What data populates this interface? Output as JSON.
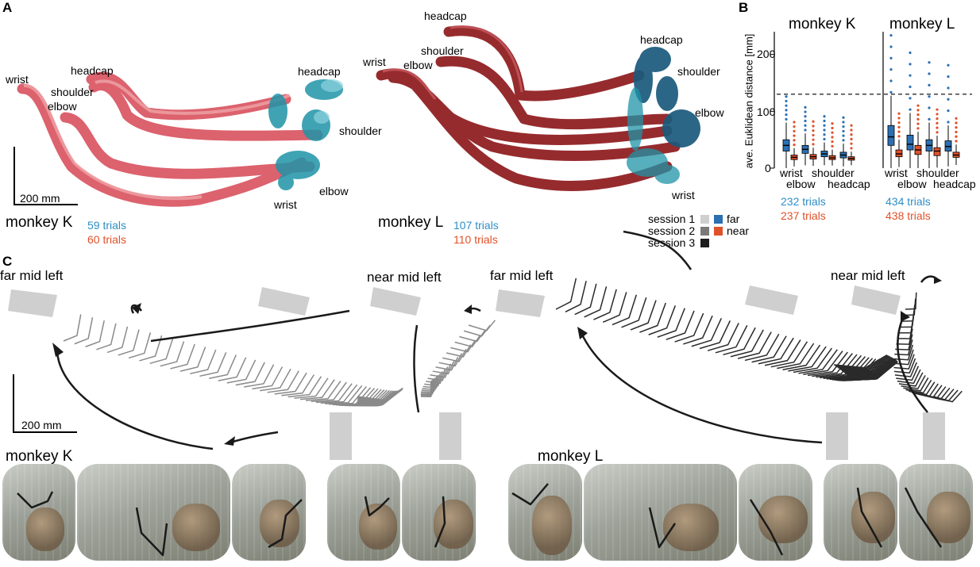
{
  "panels": {
    "a": "A",
    "b": "B",
    "c": "C"
  },
  "panel_a": {
    "scale_bar": "200 mm",
    "monkey_k": {
      "name": "monkey K",
      "far_trials": "59 trials",
      "near_trials": "60 trials",
      "labels": {
        "wrist_top": "wrist",
        "shoulder_top": "shoulder",
        "elbow_top": "elbow",
        "headcap_top": "headcap",
        "headcap_right": "headcap",
        "shoulder_right": "shoulder",
        "elbow_right": "elbow",
        "wrist_right": "wrist"
      }
    },
    "monkey_l": {
      "name": "monkey L",
      "far_trials": "107 trials",
      "near_trials": "110 trials",
      "labels": {
        "headcap_top": "headcap",
        "shoulder_top": "shoulder",
        "wrist_top": "wrist",
        "elbow_top": "elbow",
        "headcap_right": "headcap",
        "shoulder_right": "shoulder",
        "elbow_right": "elbow",
        "wrist_right": "wrist"
      }
    },
    "legend": {
      "session1": "session 1",
      "session2": "session 2",
      "session3": "session 3",
      "far": "far",
      "near": "near"
    }
  },
  "panel_b": {
    "ylabel": "ave. Euklidean distance [mm]",
    "monkey_k": {
      "title": "monkey K",
      "far_trials": "232 trials",
      "near_trials": "237 trials"
    },
    "monkey_l": {
      "title": "monkey L",
      "far_trials": "434 trials",
      "near_trials": "438 trials"
    },
    "ticks": [
      "0",
      "100",
      "200"
    ],
    "cat_row1": [
      "wrist",
      "shoulder"
    ],
    "cat_row2": [
      "elbow",
      "headcap"
    ]
  },
  "panel_c": {
    "scale_bar": "200 mm",
    "labels": {
      "k_far": "far mid left",
      "k_near": "near mid left",
      "l_far": "far mid left",
      "l_near": "near mid left"
    },
    "monkey_k": "monkey K",
    "monkey_l": "monkey L"
  },
  "chart_data": {
    "type": "box",
    "title": "",
    "ylabel": "ave. Euklidean distance [mm]",
    "ylim": [
      0,
      240
    ],
    "threshold_line": 130,
    "categories": [
      "wrist",
      "elbow",
      "shoulder",
      "headcap"
    ],
    "groups": [
      {
        "name": "monkey K",
        "series": [
          {
            "name": "far",
            "color": "#2b70b3",
            "medians": [
              40,
              33,
              25,
              23
            ],
            "q1": [
              30,
              26,
              20,
              18
            ],
            "q3": [
              50,
              40,
              30,
              28
            ]
          },
          {
            "name": "near",
            "color": "#e0512a",
            "medians": [
              19,
              20,
              18,
              17
            ],
            "q1": [
              15,
              16,
              15,
              14
            ],
            "q3": [
              23,
              24,
              22,
              20
            ]
          }
        ]
      },
      {
        "name": "monkey L",
        "series": [
          {
            "name": "far",
            "color": "#2b70b3",
            "medians": [
              55,
              42,
              40,
              38
            ],
            "q1": [
              40,
              32,
              30,
              30
            ],
            "q3": [
              75,
              58,
              50,
              48
            ]
          },
          {
            "name": "near",
            "color": "#e0512a",
            "medians": [
              25,
              32,
              30,
              23
            ],
            "q1": [
              20,
              24,
              22,
              19
            ],
            "q3": [
              32,
              40,
              36,
              28
            ]
          }
        ]
      }
    ]
  },
  "colors": {
    "far": "#2e8fc6",
    "near": "#e0512a",
    "k_traj": "#d9525f",
    "l_traj": "#8e1a1d",
    "teal": "#1f94a8",
    "navy": "#1b5a7c"
  }
}
